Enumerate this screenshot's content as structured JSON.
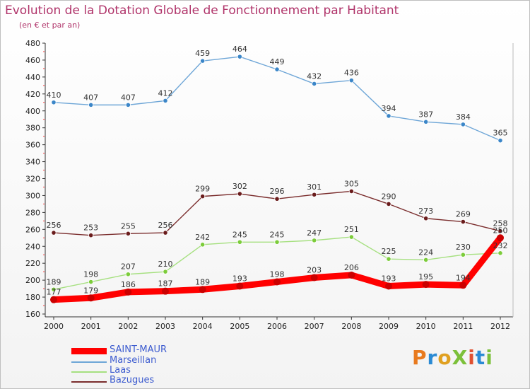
{
  "header": {
    "title": "Evolution de la Dotation Globale de Fonctionnement par Habitant",
    "subtitle": "(en € et par an)"
  },
  "logo": {
    "text": "ProXiti"
  },
  "chart_data": {
    "type": "line",
    "x": [
      "2000",
      "2001",
      "2002",
      "2003",
      "2004",
      "2005",
      "2006",
      "2007",
      "2008",
      "2009",
      "2010",
      "2011",
      "2012"
    ],
    "ylim": [
      160,
      480
    ],
    "yticks": [
      160,
      180,
      200,
      220,
      240,
      260,
      280,
      300,
      320,
      340,
      360,
      380,
      400,
      420,
      440,
      460,
      480
    ],
    "grid": false,
    "legend_position": "bottom-left",
    "series": [
      {
        "name": "SAINT-MAUR",
        "color": "#ff0000",
        "marker_color": "#cc0000",
        "values": [
          177,
          179,
          186,
          187,
          189,
          193,
          198,
          203,
          206,
          193,
          195,
          194,
          250
        ]
      },
      {
        "name": "Marseillan",
        "color": "#6ea6d7",
        "marker_color": "#3b86c8",
        "values": [
          410,
          407,
          407,
          412,
          459,
          464,
          449,
          432,
          436,
          394,
          387,
          384,
          365
        ]
      },
      {
        "name": "Laas",
        "color": "#a6e080",
        "marker_color": "#7ccc3a",
        "values": [
          189,
          198,
          207,
          210,
          242,
          245,
          245,
          247,
          251,
          225,
          224,
          230,
          232
        ]
      },
      {
        "name": "Bazugues",
        "color": "#7a2c2c",
        "marker_color": "#6a1c1c",
        "values": [
          256,
          253,
          255,
          256,
          299,
          302,
          296,
          301,
          305,
          290,
          273,
          269,
          258
        ]
      }
    ]
  }
}
